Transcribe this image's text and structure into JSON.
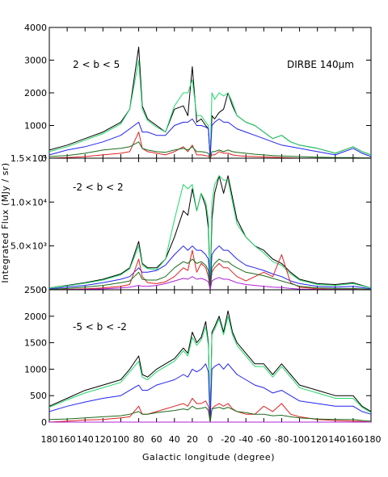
{
  "chart_data": {
    "type": "line",
    "ylabel": "Integrated Flux (MJy / sr)",
    "xlabel": "Galactic longitude (degree)",
    "annotation": "DIRBE 140μm",
    "x_ticks": [
      180,
      160,
      140,
      120,
      100,
      80,
      60,
      40,
      20,
      0,
      -20,
      -40,
      -60,
      -80,
      -100,
      -120,
      -140,
      -160,
      -180
    ],
    "xlim": [
      180,
      -180
    ],
    "series_colors": [
      "#000000",
      "#22d66a",
      "#2222ee",
      "#e02020",
      "#1a6b1a",
      "#b020d8"
    ],
    "panels": [
      {
        "label": "2 < b < 5",
        "ylim": [
          0,
          4000
        ],
        "y_ticks": [
          0,
          1000,
          2000,
          3000,
          4000
        ],
        "y_tick_labels": [
          "0",
          "1000",
          "2000",
          "3000",
          "4000"
        ],
        "x": [
          180,
          160,
          140,
          120,
          100,
          90,
          80,
          76,
          70,
          60,
          50,
          40,
          30,
          25,
          20,
          15,
          10,
          5,
          2,
          0,
          -2,
          -5,
          -10,
          -15,
          -20,
          -25,
          -30,
          -40,
          -50,
          -60,
          -70,
          -80,
          -90,
          -100,
          -120,
          -140,
          -160,
          -170,
          -180
        ],
        "series": [
          {
            "color": "#000000",
            "values": [
              250,
              400,
              600,
              800,
              1100,
              1500,
              3400,
              1600,
              1200,
              1000,
              800,
              1500,
              1600,
              1300,
              2800,
              1100,
              1200,
              1000,
              900,
              0,
              1300,
              1200,
              1400,
              1500,
              2000,
              1600,
              1300,
              1100,
              1000,
              800,
              600,
              700,
              500,
              400,
              300,
              150,
              350,
              200,
              100
            ]
          },
          {
            "color": "#22d66a",
            "values": [
              200,
              350,
              550,
              750,
              1050,
              1500,
              3000,
              1500,
              1150,
              950,
              800,
              1600,
              2000,
              2000,
              2400,
              1300,
              1300,
              1100,
              1000,
              0,
              2000,
              1800,
              2000,
              1900,
              2000,
              1700,
              1300,
              1100,
              1000,
              800,
              600,
              700,
              500,
              400,
              300,
              150,
              350,
              200,
              100
            ]
          },
          {
            "color": "#2222ee",
            "values": [
              100,
              250,
              350,
              500,
              700,
              900,
              1100,
              800,
              800,
              700,
              700,
              1000,
              1100,
              1100,
              1200,
              1000,
              1000,
              950,
              900,
              0,
              1000,
              1100,
              1200,
              1100,
              1100,
              1000,
              900,
              800,
              700,
              600,
              500,
              400,
              350,
              300,
              200,
              100,
              300,
              150,
              50
            ]
          },
          {
            "color": "#e02020",
            "values": [
              0,
              20,
              50,
              100,
              150,
              200,
              800,
              300,
              200,
              150,
              100,
              200,
              350,
              200,
              400,
              100,
              100,
              80,
              60,
              0,
              100,
              100,
              200,
              150,
              150,
              100,
              80,
              60,
              50,
              40,
              30,
              20,
              10,
              0,
              0,
              0,
              0,
              0,
              0
            ]
          },
          {
            "color": "#1a6b1a",
            "values": [
              50,
              80,
              150,
              250,
              300,
              350,
              500,
              300,
              250,
              200,
              180,
              250,
              300,
              250,
              350,
              200,
              200,
              180,
              150,
              0,
              200,
              200,
              250,
              200,
              250,
              200,
              180,
              150,
              120,
              100,
              80,
              70,
              60,
              50,
              30,
              20,
              20,
              10,
              10
            ]
          },
          {
            "color": "#b020d8",
            "values": [
              0,
              0,
              0,
              0,
              0,
              0,
              0,
              0,
              0,
              0,
              0,
              0,
              0,
              0,
              0,
              0,
              0,
              0,
              0,
              0,
              0,
              0,
              0,
              0,
              0,
              0,
              0,
              0,
              0,
              0,
              0,
              0,
              0,
              0,
              0,
              0,
              0,
              0,
              0
            ]
          }
        ]
      },
      {
        "label": "-2 < b < 2",
        "ylim": [
          0,
          15000
        ],
        "y_ticks": [
          0,
          5000,
          10000,
          15000
        ],
        "y_tick_labels": [
          "0",
          "5.0×10³",
          "1.0×10⁴",
          "1.5×10⁴"
        ],
        "x": [
          180,
          160,
          140,
          120,
          100,
          90,
          80,
          76,
          70,
          60,
          50,
          40,
          30,
          25,
          20,
          15,
          10,
          5,
          2,
          0,
          -2,
          -5,
          -10,
          -15,
          -20,
          -25,
          -30,
          -40,
          -50,
          -60,
          -70,
          -80,
          -90,
          -100,
          -120,
          -140,
          -160,
          -170,
          -180
        ],
        "series": [
          {
            "color": "#000000",
            "values": [
              200,
              500,
              800,
              1200,
              1800,
              2500,
              5500,
              3000,
              2500,
              2500,
              3500,
              6000,
              9000,
              8500,
              11500,
              9000,
              11000,
              9500,
              7000,
              500,
              8000,
              11000,
              13000,
              11000,
              13000,
              10500,
              8000,
              6000,
              5000,
              4500,
              3500,
              3000,
              2000,
              1200,
              700,
              600,
              800,
              500,
              200
            ]
          },
          {
            "color": "#22d66a",
            "values": [
              200,
              450,
              750,
              1100,
              1700,
              2400,
              5000,
              2800,
              2400,
              2300,
              3500,
              8000,
              12000,
              11500,
              12000,
              9000,
              11000,
              10000,
              8000,
              500,
              10000,
              12000,
              13000,
              12500,
              12500,
              10000,
              7500,
              6000,
              5000,
              4200,
              3200,
              2800,
              1800,
              1100,
              600,
              500,
              700,
              450,
              200
            ]
          },
          {
            "color": "#2222ee",
            "values": [
              100,
              300,
              500,
              800,
              1200,
              1500,
              2500,
              2000,
              2000,
              2200,
              2800,
              4000,
              5000,
              4500,
              5000,
              4500,
              4500,
              4000,
              3500,
              500,
              4000,
              4500,
              5000,
              4500,
              4500,
              4000,
              3500,
              2800,
              2500,
              2200,
              1800,
              1500,
              1000,
              700,
              400,
              300,
              400,
              250,
              100
            ]
          },
          {
            "color": "#e02020",
            "values": [
              0,
              50,
              100,
              200,
              400,
              600,
              3500,
              1500,
              800,
              700,
              900,
              1500,
              2500,
              2200,
              4500,
              2000,
              3000,
              2500,
              1500,
              0,
              2000,
              2500,
              3000,
              2500,
              2500,
              2000,
              1500,
              1000,
              1500,
              2000,
              1500,
              4000,
              800,
              300,
              100,
              50,
              50,
              0,
              0
            ]
          },
          {
            "color": "#1a6b1a",
            "values": [
              50,
              150,
              300,
              500,
              800,
              1000,
              2000,
              1200,
              1100,
              1100,
              1500,
              2500,
              3200,
              3000,
              3500,
              3000,
              3200,
              2800,
              2200,
              200,
              2500,
              3000,
              3500,
              3200,
              3200,
              2800,
              2500,
              2000,
              1800,
              1600,
              1300,
              1000,
              700,
              400,
              200,
              150,
              150,
              100,
              50
            ]
          },
          {
            "color": "#b020d8",
            "values": [
              0,
              20,
              50,
              100,
              200,
              300,
              500,
              400,
              400,
              500,
              700,
              1000,
              1300,
              1200,
              1500,
              1200,
              1300,
              1100,
              900,
              0,
              1000,
              1200,
              1400,
              1200,
              1200,
              1000,
              800,
              600,
              500,
              400,
              300,
              250,
              150,
              80,
              40,
              20,
              20,
              10,
              0
            ]
          }
        ]
      },
      {
        "label": "-5 < b < -2",
        "ylim": [
          0,
          2500
        ],
        "y_ticks": [
          0,
          500,
          1000,
          1500,
          2000,
          2500
        ],
        "y_tick_labels": [
          "0",
          "500",
          "1000",
          "1500",
          "2000",
          "2500"
        ],
        "x": [
          180,
          160,
          140,
          120,
          100,
          90,
          80,
          76,
          70,
          60,
          50,
          40,
          30,
          25,
          20,
          15,
          10,
          5,
          2,
          0,
          -2,
          -5,
          -10,
          -15,
          -20,
          -25,
          -30,
          -40,
          -50,
          -60,
          -70,
          -80,
          -90,
          -100,
          -120,
          -140,
          -160,
          -170,
          -180
        ],
        "series": [
          {
            "color": "#000000",
            "values": [
              300,
              450,
              600,
              700,
              800,
              1000,
              1250,
              900,
              850,
              1000,
              1100,
              1200,
              1400,
              1300,
              1700,
              1500,
              1600,
              1900,
              1500,
              0,
              1700,
              1800,
              2000,
              1700,
              2100,
              1700,
              1500,
              1300,
              1100,
              1100,
              900,
              1100,
              900,
              700,
              600,
              500,
              500,
              300,
              200
            ]
          },
          {
            "color": "#22d66a",
            "values": [
              280,
              420,
              550,
              650,
              750,
              950,
              1150,
              850,
              800,
              950,
              1050,
              1150,
              1350,
              1250,
              1600,
              1450,
              1550,
              1800,
              1450,
              0,
              1650,
              1750,
              1950,
              1650,
              2000,
              1650,
              1450,
              1250,
              1050,
              1050,
              850,
              1050,
              850,
              650,
              550,
              450,
              450,
              280,
              180
            ]
          },
          {
            "color": "#2222ee",
            "values": [
              200,
              300,
              380,
              450,
              500,
              600,
              700,
              600,
              600,
              700,
              750,
              800,
              900,
              850,
              1000,
              950,
              1000,
              1100,
              950,
              0,
              1000,
              1050,
              1100,
              1000,
              1100,
              1000,
              900,
              800,
              700,
              650,
              550,
              600,
              500,
              400,
              350,
              300,
              300,
              200,
              150
            ]
          },
          {
            "color": "#e02020",
            "values": [
              0,
              20,
              40,
              50,
              80,
              100,
              300,
              150,
              150,
              200,
              250,
              300,
              350,
              300,
              450,
              350,
              350,
              400,
              300,
              0,
              250,
              300,
              350,
              300,
              350,
              250,
              200,
              150,
              150,
              300,
              200,
              350,
              150,
              100,
              50,
              30,
              20,
              10,
              0
            ]
          },
          {
            "color": "#1a6b1a",
            "values": [
              50,
              60,
              80,
              100,
              120,
              150,
              200,
              150,
              150,
              180,
              200,
              220,
              250,
              230,
              300,
              250,
              260,
              280,
              220,
              0,
              250,
              260,
              280,
              250,
              280,
              240,
              200,
              180,
              150,
              150,
              120,
              130,
              100,
              80,
              60,
              50,
              50,
              30,
              20
            ]
          },
          {
            "color": "#b020d8",
            "values": [
              0,
              0,
              0,
              0,
              0,
              0,
              0,
              0,
              0,
              0,
              0,
              0,
              0,
              0,
              0,
              0,
              0,
              0,
              0,
              0,
              0,
              0,
              0,
              0,
              0,
              0,
              0,
              0,
              0,
              0,
              0,
              0,
              0,
              0,
              0,
              0,
              0,
              0,
              0
            ]
          }
        ]
      }
    ]
  }
}
